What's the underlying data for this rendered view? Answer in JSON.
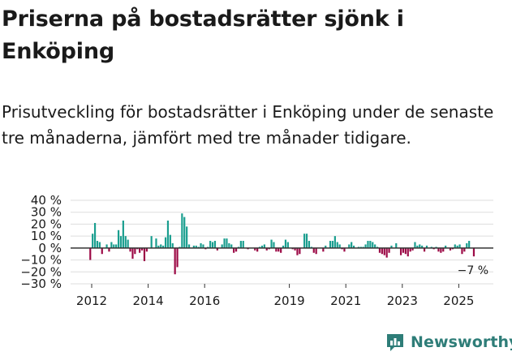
{
  "chart_data": {
    "type": "bar",
    "title": "Priserna på bostadsrätter sjönk i Enköping",
    "subtitle": "Prisutveckling för bostadsrätter i Enköping under de senaste tre månaderna, jämfört med tre månader tidigare.",
    "ylabel": "",
    "xlabel": "",
    "ylim": [
      -30,
      40
    ],
    "y_ticks": [
      "40 %",
      "30 %",
      "20 %",
      "10 %",
      "0 %",
      "−10 %",
      "−20 %",
      "−30 %"
    ],
    "x_ticks": [
      "2012",
      "2014",
      "2016",
      "2019",
      "2021",
      "2023",
      "2025"
    ],
    "x_tick_years": [
      2012,
      2014,
      2016,
      2019,
      2021,
      2023,
      2025
    ],
    "start_year": 2011.95,
    "bars_per_year": 12,
    "last_label": "−7 %",
    "colors": {
      "positive": "#1a9e8f",
      "negative": "#9c0a46",
      "zero_line": "#333333",
      "grid": "#dddddd"
    },
    "values": [
      -10,
      12,
      21,
      6,
      5,
      -5,
      0,
      3,
      -3,
      5,
      3,
      3,
      15,
      10,
      23,
      10,
      7,
      -3,
      -9,
      -5,
      -1,
      -4,
      -2,
      -11,
      -3,
      0,
      10,
      0,
      8,
      2,
      3,
      2,
      9,
      23,
      11,
      4,
      -22,
      -16,
      1,
      29,
      26,
      18,
      3,
      0,
      2,
      2,
      1,
      4,
      3,
      -1,
      1,
      6,
      5,
      6,
      -2,
      0,
      3,
      8,
      8,
      4,
      3,
      -4,
      -3,
      1,
      6,
      6,
      0,
      -1,
      0,
      0,
      -2,
      -3,
      1,
      2,
      3,
      -2,
      -1,
      7,
      5,
      -3,
      -3,
      -4,
      2,
      7,
      5,
      0,
      -1,
      -2,
      -6,
      -5,
      0,
      12,
      12,
      6,
      1,
      -4,
      -5,
      0,
      0,
      -3,
      2,
      0,
      6,
      6,
      10,
      5,
      3,
      -1,
      -3,
      0,
      3,
      5,
      2,
      0,
      1,
      1,
      1,
      3,
      6,
      6,
      5,
      3,
      1,
      -4,
      -5,
      -6,
      -8,
      -4,
      2,
      0,
      4,
      0,
      -6,
      -4,
      -5,
      -7,
      -3,
      -2,
      5,
      2,
      3,
      2,
      -3,
      2,
      0,
      1,
      -1,
      1,
      -3,
      -4,
      -3,
      2,
      0,
      -2,
      -1,
      3,
      2,
      3,
      -5,
      -3,
      4,
      6,
      0,
      -7
    ]
  },
  "footer": {
    "brand": "Newsworthy",
    "brand_icon": "bar-chart-logo-icon"
  }
}
